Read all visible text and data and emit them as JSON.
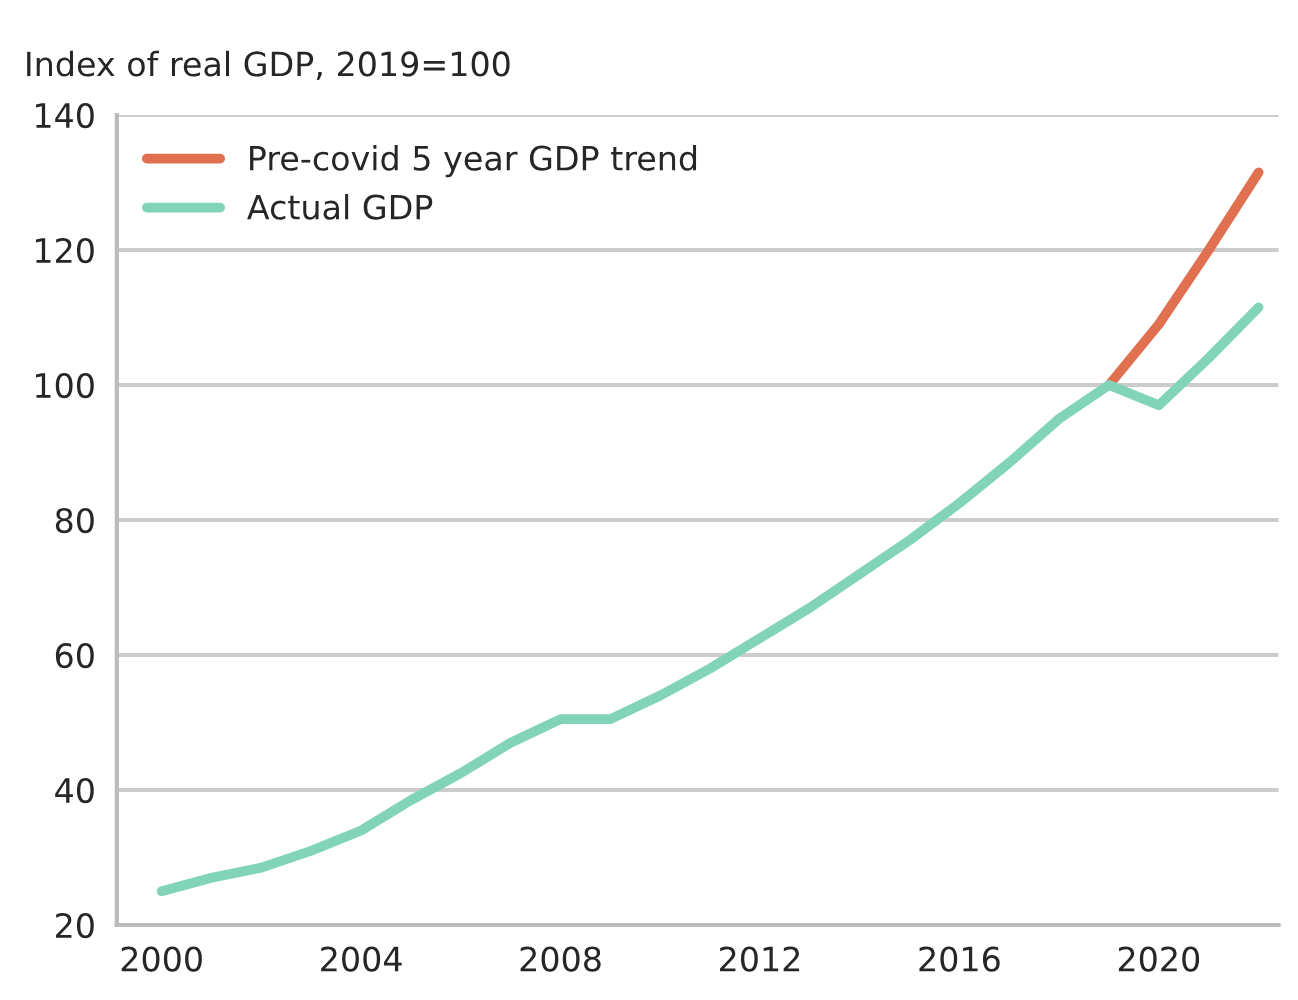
{
  "chart_data": {
    "type": "line",
    "title": "Index of real GDP, 2019=100",
    "x": [
      2000,
      2001,
      2002,
      2003,
      2004,
      2005,
      2006,
      2007,
      2008,
      2009,
      2010,
      2011,
      2012,
      2013,
      2014,
      2015,
      2016,
      2017,
      2018,
      2019,
      2020,
      2021,
      2022
    ],
    "series": [
      {
        "name": "Pre-covid 5 year GDP trend",
        "color": "#e07050",
        "x": [
          2019,
          2020,
          2021,
          2022
        ],
        "values": [
          100,
          109,
          120,
          131.5
        ]
      },
      {
        "name": "Actual GDP",
        "color": "#82d4b8",
        "values": [
          25,
          27,
          28.5,
          31,
          34,
          38.5,
          42.5,
          47,
          50.5,
          50.5,
          54,
          58,
          62.5,
          67,
          72,
          77,
          82.5,
          88.5,
          95,
          100,
          97,
          104,
          111.5
        ]
      }
    ],
    "xlim": [
      1999.1,
      2022.4
    ],
    "xticks": [
      2000,
      2004,
      2008,
      2012,
      2016,
      2020
    ],
    "ylim": [
      20,
      140
    ],
    "yticks": [
      20,
      40,
      60,
      80,
      100,
      120,
      140
    ],
    "grid": "y",
    "legend": "top left",
    "line_style": "solid",
    "marker": "none"
  }
}
